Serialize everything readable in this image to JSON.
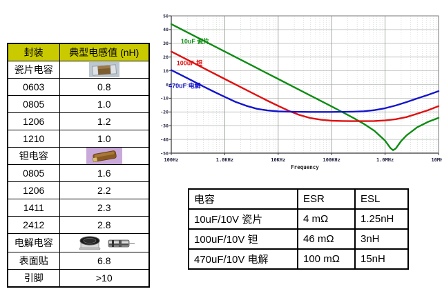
{
  "package_table": {
    "header_bg": "#caca00",
    "headers": [
      "封装",
      "典型电感值 (nH)"
    ],
    "rows": [
      {
        "label": "瓷片电容",
        "value": "",
        "image": "ceramic-capacitor"
      },
      {
        "label": "0603",
        "value": "0.8"
      },
      {
        "label": "0805",
        "value": "1.0"
      },
      {
        "label": "1206",
        "value": "1.2"
      },
      {
        "label": "1210",
        "value": "1.0"
      },
      {
        "label": "钽电容",
        "value": "",
        "image": "tantalum-capacitor"
      },
      {
        "label": "0805",
        "value": "1.6"
      },
      {
        "label": "1206",
        "value": "2.2"
      },
      {
        "label": "1411",
        "value": "2.3"
      },
      {
        "label": "2412",
        "value": "2.8"
      },
      {
        "label": "电解电容",
        "value": "",
        "image": "electrolytic-capacitors"
      },
      {
        "label": "表面贴",
        "value": "6.8"
      },
      {
        "label": "引脚",
        "value": ">10"
      }
    ]
  },
  "chart_data": {
    "type": "line",
    "title": "",
    "xlabel": "Frequency",
    "ylabel": "",
    "x_scale": "log",
    "x_ticks": [
      "100Hz",
      "1.0KHz",
      "10KHz",
      "100KHz",
      "1.0MHz",
      "10MHz"
    ],
    "x_log_range": [
      0,
      5
    ],
    "ylim": [
      -50,
      50
    ],
    "y_tick_step": 10,
    "grid": true,
    "legend_position": "inline-labels",
    "colors": {
      "grid_minor": "#c9d2c9",
      "grid_major_h": "#b8bcb8",
      "grid_major_v": "#9aa29a",
      "frame": "#777777",
      "axis": "#333333",
      "tick_label": "#1c1c3c"
    },
    "series": [
      {
        "name": "10uF 瓷片",
        "color": "#0d8c12",
        "label_at": [
          0.18,
          30
        ],
        "points": [
          [
            0,
            44
          ],
          [
            0.5,
            34
          ],
          [
            1,
            24
          ],
          [
            1.5,
            14
          ],
          [
            2,
            4
          ],
          [
            2.5,
            -6
          ],
          [
            3,
            -16
          ],
          [
            3.2,
            -20.1
          ],
          [
            3.4,
            -24.2
          ],
          [
            3.6,
            -28.6
          ],
          [
            3.8,
            -33.7
          ],
          [
            4.0,
            -40.9
          ],
          [
            4.1,
            -46.3
          ],
          [
            4.15,
            -47.9
          ],
          [
            4.2,
            -46.6
          ],
          [
            4.3,
            -41.2
          ],
          [
            4.4,
            -37.1
          ],
          [
            4.6,
            -31.2
          ],
          [
            4.8,
            -27.3
          ],
          [
            5.0,
            -24.3
          ]
        ]
      },
      {
        "name": "100uF 钽",
        "color": "#e01010",
        "label_at": [
          0.1,
          14
        ],
        "points": [
          [
            0,
            24
          ],
          [
            0.5,
            14
          ],
          [
            1,
            4
          ],
          [
            1.4,
            -3.9
          ],
          [
            1.8,
            -11.8
          ],
          [
            2.0,
            -15.6
          ],
          [
            2.2,
            -19.2
          ],
          [
            2.4,
            -22.2
          ],
          [
            2.6,
            -24.4
          ],
          [
            2.8,
            -25.7
          ],
          [
            3.0,
            -26.4
          ],
          [
            3.2,
            -26.6
          ],
          [
            3.4,
            -26.7
          ],
          [
            3.6,
            -26.7
          ],
          [
            3.8,
            -26.6
          ],
          [
            4.0,
            -26.2
          ],
          [
            4.2,
            -25.3
          ],
          [
            4.4,
            -23.7
          ],
          [
            4.6,
            -21.3
          ],
          [
            4.8,
            -18.8
          ],
          [
            5.0,
            -15.8
          ]
        ]
      },
      {
        "name": "470uF 电解",
        "color": "#1414cc",
        "label_at": [
          -0.05,
          -2.5
        ],
        "points": [
          [
            0,
            10.5
          ],
          [
            0.2,
            6.6
          ],
          [
            0.4,
            2.6
          ],
          [
            0.6,
            -1.4
          ],
          [
            0.8,
            -5.3
          ],
          [
            1.0,
            -9.0
          ],
          [
            1.2,
            -12.6
          ],
          [
            1.4,
            -15.5
          ],
          [
            1.6,
            -17.7
          ],
          [
            1.8,
            -18.9
          ],
          [
            2.0,
            -19.6
          ],
          [
            2.2,
            -19.8
          ],
          [
            2.6,
            -20.0
          ],
          [
            3.0,
            -20.0
          ],
          [
            3.4,
            -19.8
          ],
          [
            3.6,
            -19.5
          ],
          [
            3.8,
            -18.7
          ],
          [
            4.0,
            -17.3
          ],
          [
            4.2,
            -15.3
          ],
          [
            4.4,
            -12.8
          ],
          [
            4.6,
            -10.2
          ],
          [
            4.8,
            -7.6
          ],
          [
            5.0,
            -4.8
          ]
        ]
      }
    ]
  },
  "esr_table": {
    "headers": [
      "电容",
      "ESR",
      "ESL"
    ],
    "rows": [
      [
        "10uF/10V 瓷片",
        "4 mΩ",
        "1.25nH"
      ],
      [
        "100uF/10V 钽",
        "46 mΩ",
        "3nH"
      ],
      [
        "470uF/10V 电解",
        "100 mΩ",
        "15nH"
      ]
    ]
  }
}
